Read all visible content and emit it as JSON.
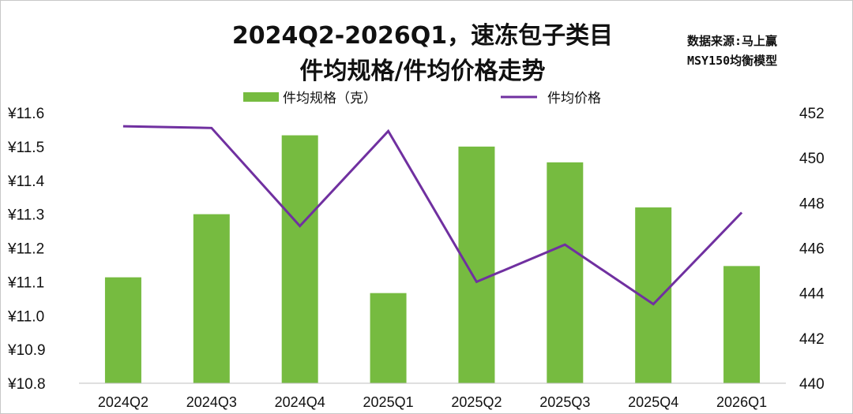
{
  "chart_data": {
    "type": "bar",
    "title_line1": "2024Q2-2026Q1，速冻包子类目",
    "title_line2": "件均规格/件均价格走势",
    "source_line1": "数据来源:马上赢",
    "source_line2": "MSY150均衡模型",
    "categories": [
      "2024Q2",
      "2024Q3",
      "2024Q4",
      "2025Q1",
      "2025Q2",
      "2025Q3",
      "2025Q4",
      "2026Q1"
    ],
    "series": [
      {
        "name": "件均规格（克）",
        "type": "bar",
        "axis": "right",
        "color": "#76bb40",
        "values": [
          444.7,
          447.5,
          451.0,
          444.0,
          450.5,
          449.8,
          447.8,
          445.2
        ]
      },
      {
        "name": "件均价格",
        "type": "line",
        "axis": "left",
        "color": "#7030a0",
        "values": [
          11.56,
          11.555,
          11.265,
          11.546,
          11.1,
          11.21,
          11.034,
          11.305
        ]
      }
    ],
    "y_left": {
      "ylim": [
        10.8,
        11.6
      ],
      "ticks": [
        "¥10.8",
        "¥10.9",
        "¥11.0",
        "¥11.1",
        "¥11.2",
        "¥11.3",
        "¥11.4",
        "¥11.5",
        "¥11.6"
      ],
      "tick_values": [
        10.8,
        10.9,
        11.0,
        11.1,
        11.2,
        11.3,
        11.4,
        11.5,
        11.6
      ]
    },
    "y_right": {
      "ylim": [
        440,
        452
      ],
      "ticks": [
        "440",
        "442",
        "444",
        "446",
        "448",
        "450",
        "452"
      ],
      "tick_values": [
        440,
        442,
        444,
        446,
        448,
        450,
        452
      ]
    },
    "grid": false,
    "legend_position": "top"
  }
}
